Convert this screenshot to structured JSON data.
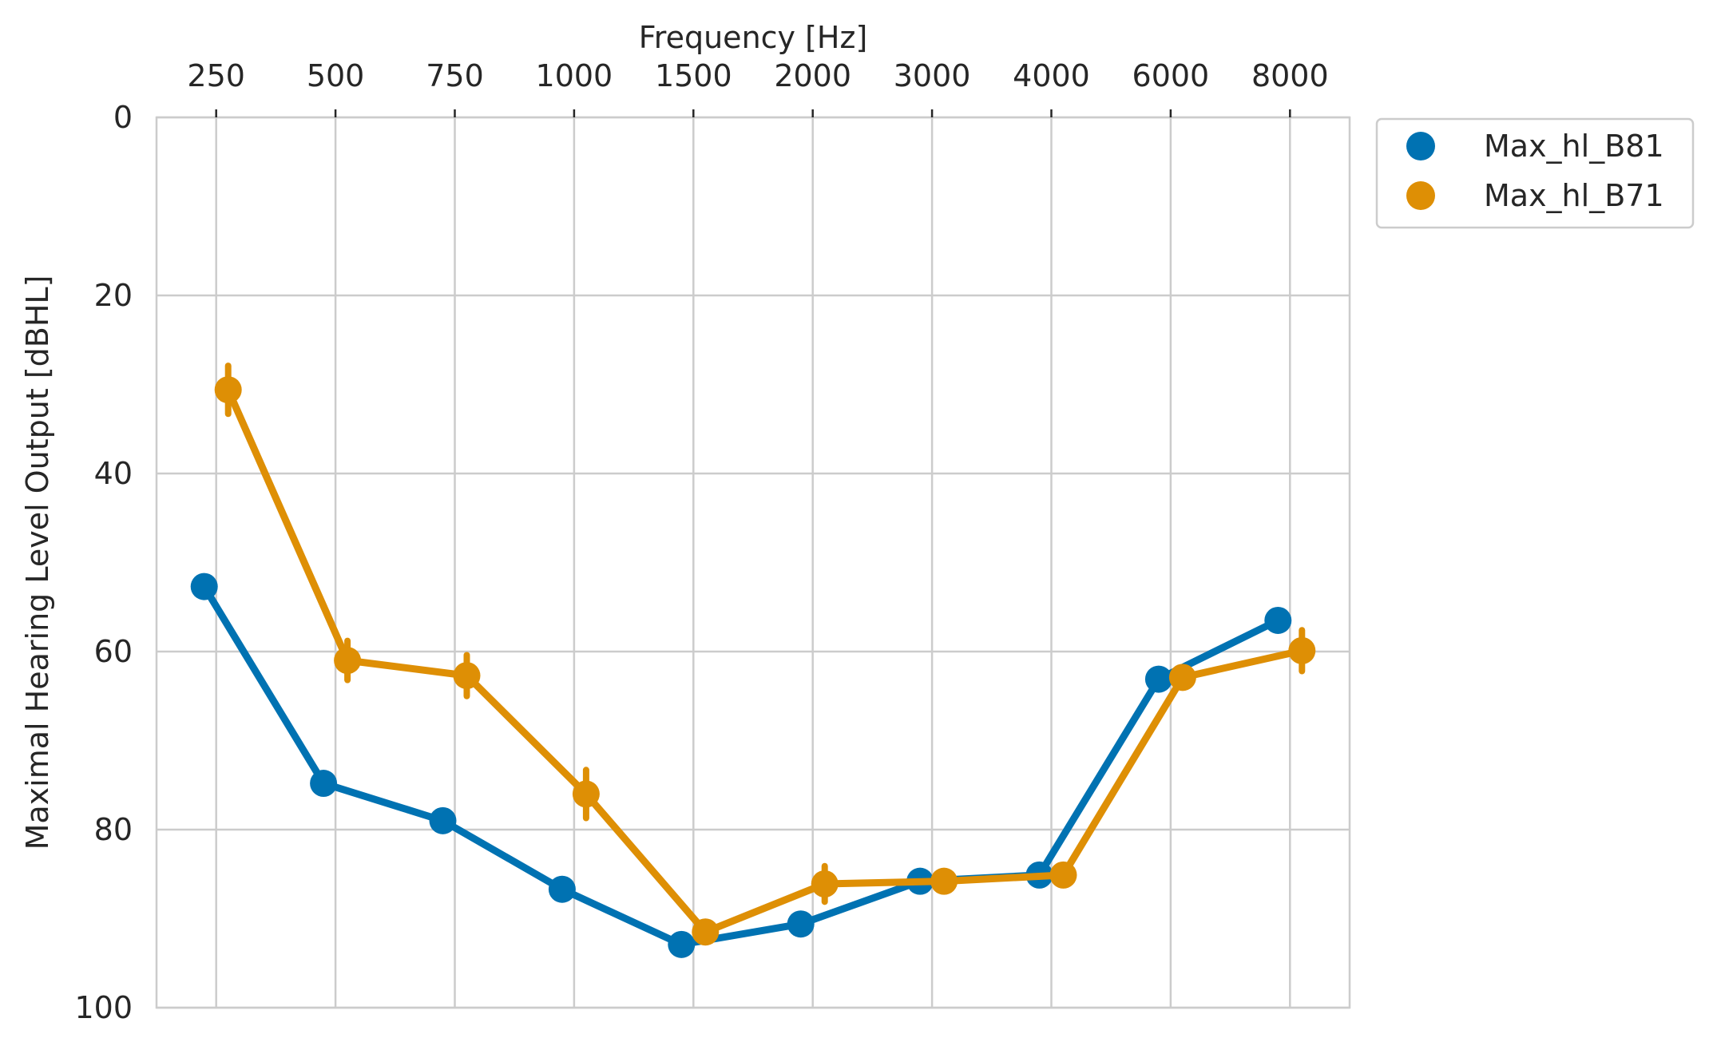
{
  "chart_data": {
    "type": "line",
    "title": "",
    "xlabel": "Frequency [Hz]",
    "ylabel": "Maximal Hearing Level Output [dBHL]",
    "categories": [
      "250",
      "500",
      "750",
      "1000",
      "1500",
      "2000",
      "3000",
      "4000",
      "6000",
      "8000"
    ],
    "ylim": [
      0,
      100
    ],
    "y_inverted": true,
    "yticks": [
      0,
      20,
      40,
      60,
      80,
      100
    ],
    "x_axis_position": "top",
    "grid": true,
    "legend_position": "outside-top-right",
    "series": [
      {
        "name": "Max_hl_B81",
        "color": "#0072b2",
        "values": [
          52.7,
          74.8,
          79.0,
          86.7,
          92.9,
          90.6,
          85.8,
          85.1,
          63.1,
          56.5
        ],
        "err": [
          0,
          0,
          0,
          0,
          0,
          0,
          0,
          0,
          0,
          0
        ]
      },
      {
        "name": "Max_hl_B71",
        "color": "#de8f05",
        "values": [
          30.6,
          61.0,
          62.7,
          76.0,
          91.5,
          86.1,
          85.8,
          85.1,
          62.9,
          59.9
        ],
        "err": [
          2.7,
          2.2,
          2.3,
          2.7,
          0.5,
          2.0,
          0.3,
          0.3,
          0.5,
          2.3
        ]
      }
    ]
  }
}
